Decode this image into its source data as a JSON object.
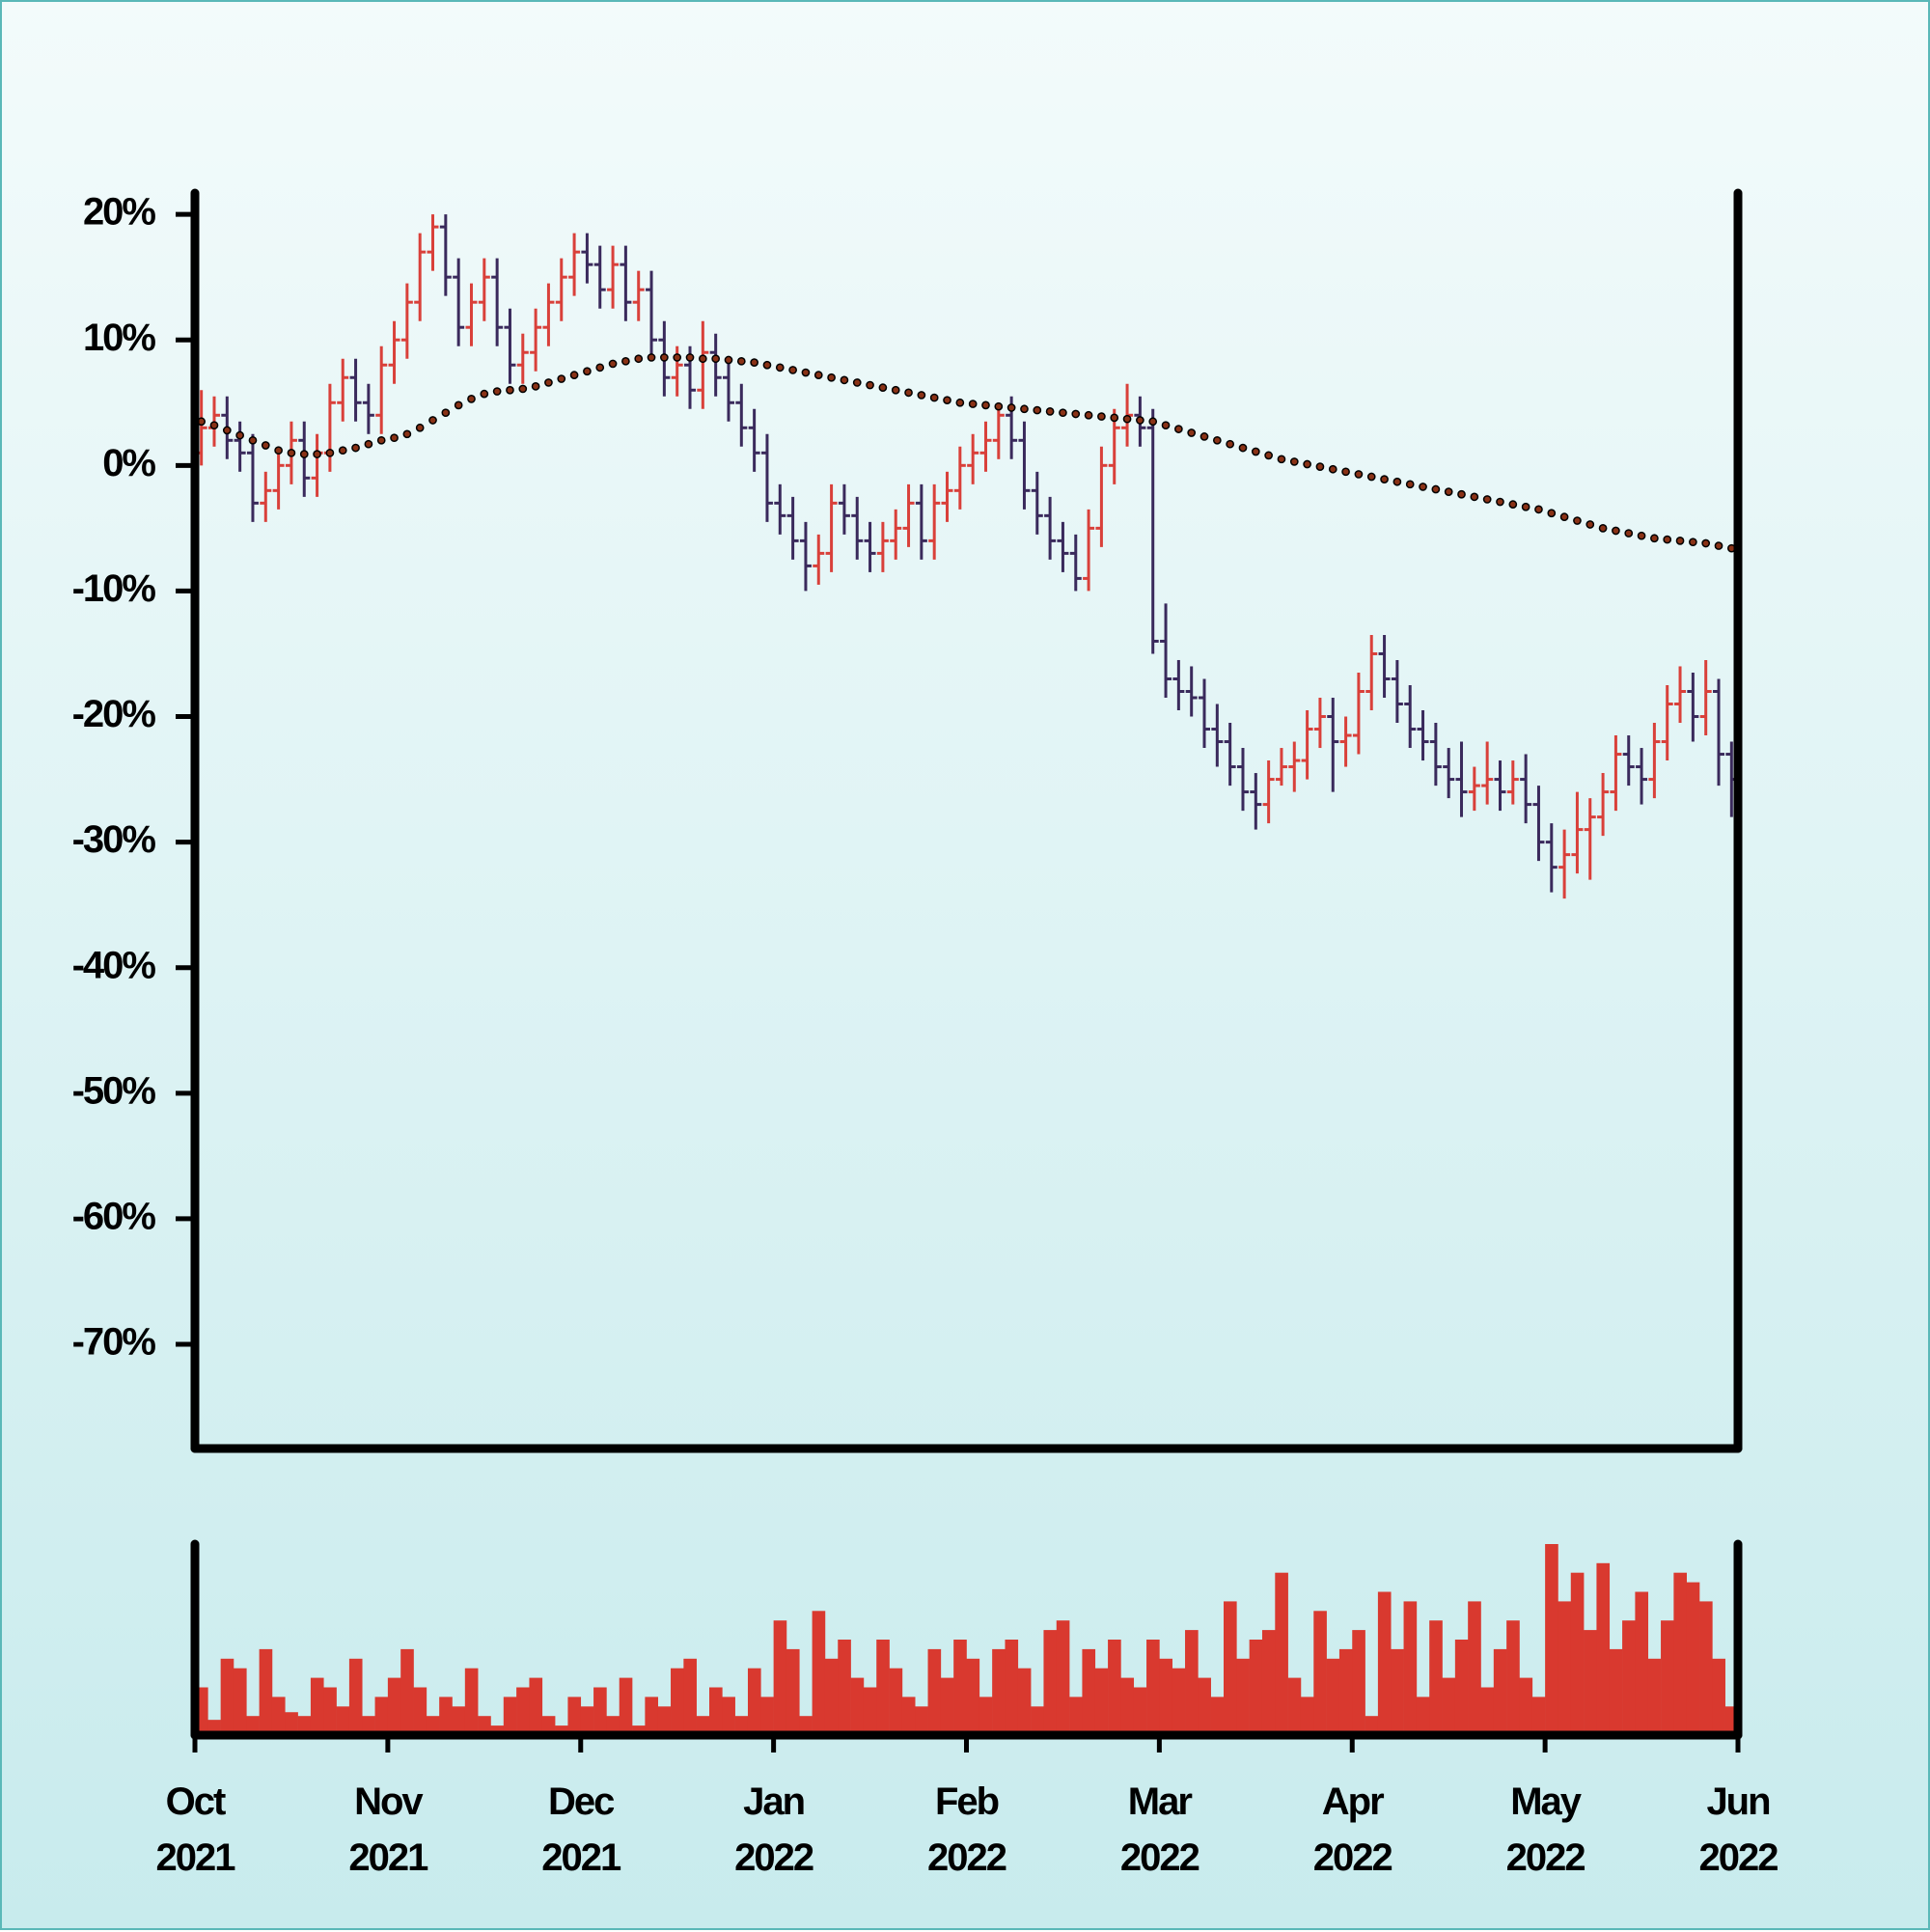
{
  "chart_data": {
    "type": "ohlc",
    "xticks": [
      "Oct 2021",
      "Nov 2021",
      "Dec 2021",
      "Jan 2022",
      "Feb 2022",
      "Mar 2022",
      "Apr 2022",
      "May 2022",
      "Jun 2022"
    ],
    "ylim": [
      -78.3,
      21.7
    ],
    "yticks": [
      {
        "value": 20,
        "label": "20%"
      },
      {
        "value": 10,
        "label": "10%"
      },
      {
        "value": 0,
        "label": "0%"
      },
      {
        "value": -10,
        "label": "-10%"
      },
      {
        "value": -20,
        "label": "-20%"
      },
      {
        "value": -30,
        "label": "-30%"
      },
      {
        "value": -40,
        "label": "-40%"
      },
      {
        "value": -50,
        "label": "-50%"
      },
      {
        "value": -60,
        "label": "-60%"
      },
      {
        "value": -70,
        "label": "-70%"
      }
    ],
    "up_color": "#d9403a",
    "down_color": "#3a2a5c",
    "ohlc": [
      [
        1,
        6,
        0,
        3
      ],
      [
        3,
        5.5,
        1.5,
        4
      ],
      [
        4,
        5.5,
        0.5,
        2
      ],
      [
        2,
        3.5,
        -0.5,
        1
      ],
      [
        1,
        2.5,
        -4.5,
        -3
      ],
      [
        -3,
        -0.5,
        -4.5,
        -2
      ],
      [
        -2,
        1.5,
        -3.5,
        0
      ],
      [
        0,
        3.5,
        -1.5,
        2
      ],
      [
        2,
        3.5,
        -2.5,
        -1
      ],
      [
        -1,
        2.5,
        -2.5,
        1
      ],
      [
        1,
        6.5,
        -0.5,
        5
      ],
      [
        5,
        8.5,
        3.5,
        7
      ],
      [
        7,
        8.5,
        3.5,
        5
      ],
      [
        5,
        6.5,
        2.5,
        4
      ],
      [
        4,
        9.5,
        2.5,
        8
      ],
      [
        8,
        11.5,
        6.5,
        10
      ],
      [
        10,
        14.5,
        8.5,
        13
      ],
      [
        13,
        18.5,
        11.5,
        17
      ],
      [
        17,
        20,
        15.5,
        19
      ],
      [
        19,
        20,
        13.5,
        15
      ],
      [
        15,
        16.5,
        9.5,
        11
      ],
      [
        11,
        14.5,
        9.5,
        13
      ],
      [
        13,
        16.5,
        11.5,
        15
      ],
      [
        15,
        16.5,
        9.5,
        11
      ],
      [
        11,
        12.5,
        6.5,
        8
      ],
      [
        8,
        10.5,
        6.5,
        9
      ],
      [
        9,
        12.5,
        7.5,
        11
      ],
      [
        11,
        14.5,
        9.5,
        13
      ],
      [
        13,
        16.5,
        11.5,
        15
      ],
      [
        15,
        18.5,
        13.5,
        17
      ],
      [
        17,
        18.5,
        14.5,
        16
      ],
      [
        16,
        17.5,
        12.5,
        14
      ],
      [
        14,
        17.5,
        12.5,
        16
      ],
      [
        16,
        17.5,
        11.5,
        13
      ],
      [
        13,
        15.5,
        11.5,
        14
      ],
      [
        14,
        15.5,
        8.5,
        10
      ],
      [
        10,
        11.5,
        5.5,
        7
      ],
      [
        7,
        9.5,
        5.5,
        8
      ],
      [
        8,
        9.5,
        4.5,
        6
      ],
      [
        6,
        11.5,
        4.5,
        9
      ],
      [
        9,
        10.5,
        5.5,
        7
      ],
      [
        7,
        8.5,
        3.5,
        5
      ],
      [
        5,
        6.5,
        1.5,
        3
      ],
      [
        3,
        4.5,
        -0.5,
        1
      ],
      [
        1,
        2.5,
        -4.5,
        -3
      ],
      [
        -3,
        -1.5,
        -5.5,
        -4
      ],
      [
        -4,
        -2.5,
        -7.5,
        -6
      ],
      [
        -6,
        -4.5,
        -10,
        -8
      ],
      [
        -8,
        -5.5,
        -9.5,
        -7
      ],
      [
        -7,
        -1.5,
        -8.5,
        -3
      ],
      [
        -3,
        -1.5,
        -5.5,
        -4
      ],
      [
        -4,
        -2.5,
        -7.5,
        -6
      ],
      [
        -6,
        -4.5,
        -8.5,
        -7
      ],
      [
        -7,
        -4.5,
        -8.5,
        -6
      ],
      [
        -6,
        -3.5,
        -7.5,
        -5
      ],
      [
        -5,
        -1.5,
        -6.5,
        -3
      ],
      [
        -3,
        -1.5,
        -7.5,
        -6
      ],
      [
        -6,
        -1.5,
        -7.5,
        -3
      ],
      [
        -3,
        -0.5,
        -4.5,
        -2
      ],
      [
        -2,
        1.5,
        -3.5,
        0
      ],
      [
        0,
        2.5,
        -1.5,
        1
      ],
      [
        1,
        3.5,
        -0.5,
        2
      ],
      [
        2,
        5,
        0.5,
        4
      ],
      [
        4,
        5.5,
        0.5,
        2
      ],
      [
        2,
        3.5,
        -3.5,
        -2
      ],
      [
        -2,
        -0.5,
        -5.5,
        -4
      ],
      [
        -4,
        -2.5,
        -7.5,
        -6
      ],
      [
        -6,
        -4.5,
        -8.5,
        -7
      ],
      [
        -7,
        -5.5,
        -10,
        -9
      ],
      [
        -9,
        -3.5,
        -10,
        -5
      ],
      [
        -5,
        1.5,
        -6.5,
        0
      ],
      [
        0,
        4.5,
        -1.5,
        3
      ],
      [
        3,
        6.5,
        1.5,
        4
      ],
      [
        4,
        5.5,
        1.5,
        3
      ],
      [
        3,
        4.5,
        -15,
        -14
      ],
      [
        -14,
        -11,
        -18.5,
        -17
      ],
      [
        -17,
        -15.5,
        -19.5,
        -18
      ],
      [
        -18,
        -16,
        -20,
        -18.5
      ],
      [
        -18.5,
        -17,
        -22.5,
        -21
      ],
      [
        -21,
        -19,
        -24,
        -22
      ],
      [
        -22,
        -20.5,
        -25.5,
        -24
      ],
      [
        -24,
        -22.5,
        -27.5,
        -26
      ],
      [
        -26,
        -24.5,
        -29,
        -27
      ],
      [
        -27,
        -23.5,
        -28.5,
        -25
      ],
      [
        -25,
        -22.5,
        -25.5,
        -24
      ],
      [
        -24,
        -22,
        -26,
        -23.5
      ],
      [
        -23.5,
        -19.5,
        -25,
        -21
      ],
      [
        -21,
        -18.5,
        -22.5,
        -20
      ],
      [
        -20,
        -18.5,
        -26,
        -22
      ],
      [
        -22,
        -20,
        -24,
        -21.5
      ],
      [
        -21.5,
        -16.5,
        -23,
        -18
      ],
      [
        -18,
        -13.5,
        -19.5,
        -15
      ],
      [
        -15,
        -13.5,
        -18.5,
        -17
      ],
      [
        -17,
        -15.5,
        -20.5,
        -19
      ],
      [
        -19,
        -17.5,
        -22.5,
        -21
      ],
      [
        -21,
        -19.5,
        -23.5,
        -22
      ],
      [
        -22,
        -20.5,
        -25.5,
        -24
      ],
      [
        -24,
        -22.5,
        -26.5,
        -25
      ],
      [
        -25,
        -22,
        -28,
        -26
      ],
      [
        -26,
        -24,
        -27.5,
        -25.5
      ],
      [
        -25.5,
        -22,
        -27,
        -25
      ],
      [
        -25,
        -23.5,
        -27.5,
        -26
      ],
      [
        -26,
        -23.5,
        -27,
        -25
      ],
      [
        -25,
        -23,
        -28.5,
        -27
      ],
      [
        -27,
        -25.5,
        -31.5,
        -30
      ],
      [
        -30,
        -28.5,
        -34,
        -32
      ],
      [
        -32,
        -29,
        -34.5,
        -31
      ],
      [
        -31,
        -26,
        -32.5,
        -29
      ],
      [
        -29,
        -26.5,
        -33,
        -28
      ],
      [
        -28,
        -24.5,
        -29.5,
        -26
      ],
      [
        -26,
        -21.5,
        -27.5,
        -23
      ],
      [
        -23,
        -21.5,
        -25.5,
        -24
      ],
      [
        -24,
        -22.5,
        -27,
        -25
      ],
      [
        -25,
        -20.5,
        -26.5,
        -22
      ],
      [
        -22,
        -17.5,
        -23.5,
        -19
      ],
      [
        -19,
        -16,
        -20.5,
        -18
      ],
      [
        -18,
        -16.5,
        -22,
        -20
      ],
      [
        -20,
        -15.5,
        -21.5,
        -18
      ],
      [
        -18,
        -17,
        -25.5,
        -23
      ],
      [
        -23,
        -22,
        -28,
        -25
      ]
    ],
    "moving_average": {
      "color": "#8a3216",
      "values": [
        3.5,
        3.2,
        2.8,
        2.4,
        2,
        1.6,
        1.2,
        1,
        0.9,
        0.9,
        1,
        1.2,
        1.4,
        1.7,
        2,
        2.2,
        2.5,
        3,
        3.6,
        4.2,
        4.8,
        5.3,
        5.7,
        5.9,
        6,
        6.1,
        6.3,
        6.6,
        6.9,
        7.2,
        7.5,
        7.8,
        8.1,
        8.3,
        8.5,
        8.6,
        8.6,
        8.6,
        8.6,
        8.5,
        8.5,
        8.4,
        8.3,
        8.2,
        8,
        7.8,
        7.6,
        7.4,
        7.2,
        7,
        6.8,
        6.6,
        6.4,
        6.2,
        6,
        5.8,
        5.6,
        5.4,
        5.2,
        5,
        4.9,
        4.8,
        4.7,
        4.6,
        4.5,
        4.4,
        4.3,
        4.2,
        4.1,
        4,
        3.9,
        3.8,
        3.7,
        3.6,
        3.5,
        3.2,
        2.9,
        2.6,
        2.3,
        2,
        1.7,
        1.4,
        1.1,
        0.8,
        0.5,
        0.3,
        0.1,
        -0.1,
        -0.3,
        -0.5,
        -0.7,
        -0.9,
        -1.1,
        -1.3,
        -1.5,
        -1.7,
        -1.9,
        -2.1,
        -2.3,
        -2.5,
        -2.7,
        -2.9,
        -3.1,
        -3.3,
        -3.5,
        -3.8,
        -4.1,
        -4.4,
        -4.7,
        -5,
        -5.2,
        -5.4,
        -5.6,
        -5.8,
        -5.9,
        -6,
        -6.1,
        -6.2,
        -6.4,
        -6.6
      ]
    },
    "volume": {
      "color": "#d9392f",
      "ylim": [
        0,
        100
      ],
      "values": [
        25,
        8,
        40,
        35,
        10,
        45,
        20,
        12,
        10,
        30,
        25,
        15,
        40,
        10,
        20,
        30,
        45,
        25,
        10,
        20,
        15,
        35,
        10,
        5,
        20,
        25,
        30,
        10,
        5,
        20,
        15,
        25,
        10,
        30,
        5,
        20,
        15,
        35,
        40,
        10,
        25,
        20,
        10,
        35,
        20,
        60,
        45,
        10,
        65,
        40,
        50,
        30,
        25,
        50,
        35,
        20,
        15,
        45,
        30,
        50,
        40,
        20,
        45,
        50,
        35,
        15,
        55,
        60,
        20,
        45,
        35,
        50,
        30,
        25,
        50,
        40,
        35,
        55,
        30,
        20,
        70,
        40,
        50,
        55,
        85,
        30,
        20,
        65,
        40,
        45,
        55,
        10,
        75,
        45,
        70,
        20,
        60,
        30,
        50,
        70,
        25,
        45,
        60,
        30,
        20,
        100,
        70,
        85,
        55,
        90,
        45,
        60,
        75,
        40,
        60,
        85,
        80,
        70,
        40,
        15
      ]
    }
  }
}
